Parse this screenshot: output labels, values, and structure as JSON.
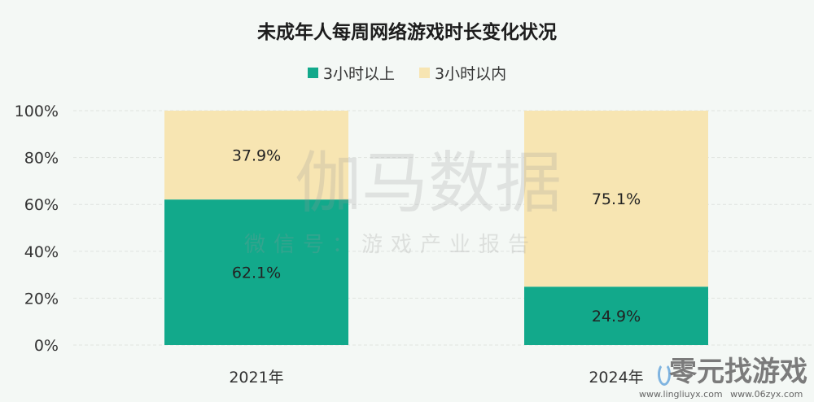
{
  "chart_data": {
    "type": "bar",
    "stacked": true,
    "title": "未成年人每周网络游戏时长变化状况",
    "categories": [
      "2021年",
      "2024年"
    ],
    "series": [
      {
        "name": "3小时以上",
        "values": [
          62.1,
          24.9
        ],
        "labels": [
          "62.1%",
          "24.9%"
        ],
        "color": "#12a98b"
      },
      {
        "name": "3小时以内",
        "values": [
          37.9,
          75.1
        ],
        "labels": [
          "37.9%",
          "75.1%"
        ],
        "color": "#f7e5b2"
      }
    ],
    "ylim": [
      0,
      100
    ],
    "yticks": [
      "0%",
      "20%",
      "40%",
      "60%",
      "80%",
      "100%"
    ],
    "grid": true,
    "legend": "top-center",
    "xlabel": "",
    "ylabel": ""
  },
  "watermarks": {
    "brand": "伽马数据",
    "wechat": "微信号：游戏产业报告",
    "site_logo": "零元找游戏",
    "site_urls": "www.lingliuyx.com www.06zyx.com"
  }
}
